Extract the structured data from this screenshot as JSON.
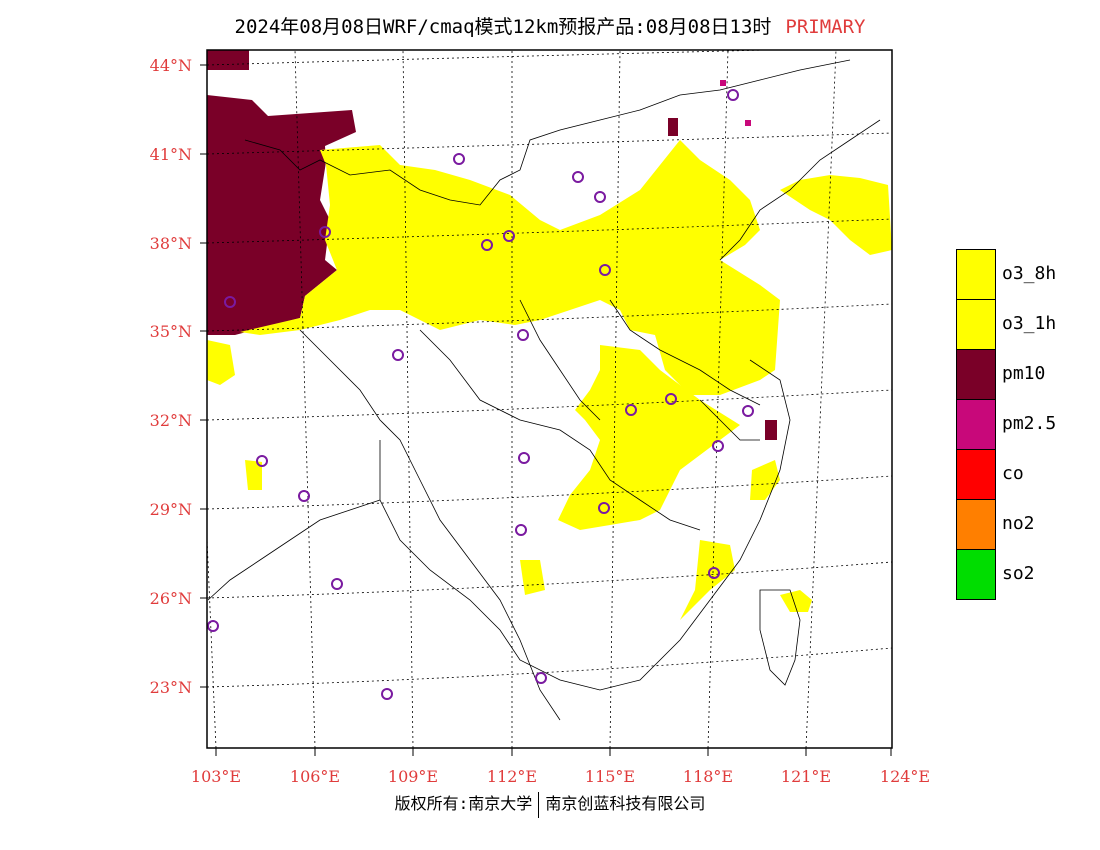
{
  "title": {
    "main": "2024年08月08日WRF/cmaq模式12km预报产品:08月08日13时",
    "tag": "PRIMARY",
    "tag_color": "#e03c3c"
  },
  "axes": {
    "lat_labels": [
      "44°N",
      "41°N",
      "38°N",
      "35°N",
      "32°N",
      "29°N",
      "26°N",
      "23°N"
    ],
    "lon_labels": [
      "103°E",
      "106°E",
      "109°E",
      "112°E",
      "115°E",
      "118°E",
      "121°E",
      "124°E"
    ],
    "label_color": "#e03c3c"
  },
  "legend": [
    {
      "label": "o3_8h",
      "color": "#ffff00"
    },
    {
      "label": "o3_1h",
      "color": "#ffff00"
    },
    {
      "label": "pm10",
      "color": "#7a0028"
    },
    {
      "label": "pm2.5",
      "color": "#c8087a"
    },
    {
      "label": "co",
      "color": "#ff0000"
    },
    {
      "label": "no2",
      "color": "#ff7f00"
    },
    {
      "label": "so2",
      "color": "#00dd00"
    }
  ],
  "footer": {
    "left": "版权所有:南京大学",
    "right": "南京创蓝科技有限公司"
  }
}
